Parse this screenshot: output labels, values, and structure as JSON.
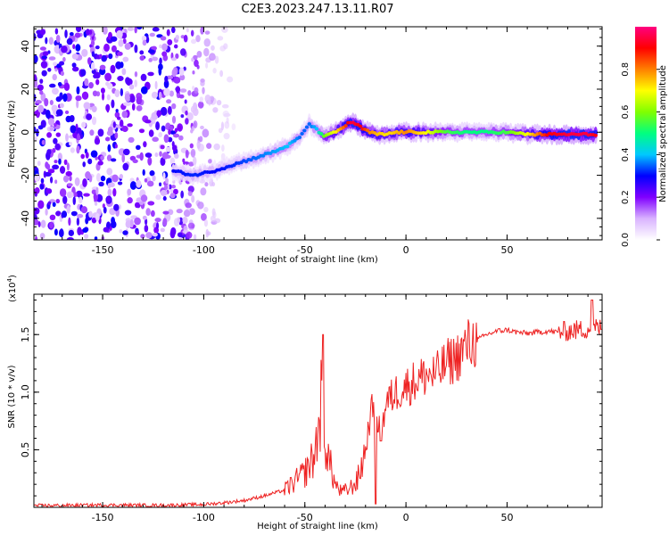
{
  "title": "C2E3.2023.247.13.11.R07",
  "colorbar": {
    "label": "Normalized spectral amplitude",
    "ticks": [
      "0.0",
      "0.2",
      "0.4",
      "0.6",
      "0.8"
    ],
    "tick_values": [
      0.0,
      0.2,
      0.4,
      0.6,
      0.8
    ],
    "range": [
      0,
      1
    ],
    "colors": [
      "#ffffff",
      "#d9b3ff",
      "#8000ff",
      "#0000ff",
      "#00c8ff",
      "#00ff80",
      "#80ff00",
      "#ffff00",
      "#ff8000",
      "#ff0000",
      "#ff0080"
    ]
  },
  "chart_data": [
    {
      "type": "heatmap",
      "title": "C2E3.2023.247.13.11.R07",
      "xlabel": "Height of straight line (km)",
      "ylabel": "Frequency (Hz)",
      "xlim": [
        -184,
        97
      ],
      "ylim": [
        -50,
        49
      ],
      "x_ticks": [
        -150,
        -100,
        -50,
        0,
        50
      ],
      "x_tick_labels": [
        "-150",
        "-100",
        "-50",
        "0",
        "50"
      ],
      "y_ticks": [
        -40,
        -20,
        0,
        20,
        40
      ],
      "y_tick_labels": [
        "-40",
        "-20",
        "0",
        "20",
        "40"
      ],
      "ridge": {
        "x": [
          -115,
          -105,
          -95,
          -85,
          -75,
          -65,
          -58,
          -52,
          -48,
          -44,
          -40,
          -35,
          -30,
          -27,
          -22,
          -18,
          -14,
          -10,
          -5,
          0,
          10,
          20,
          30,
          40,
          50,
          60,
          70,
          80,
          90,
          95
        ],
        "y": [
          -18,
          -20,
          -18,
          -15,
          -12,
          -9,
          -6,
          -2,
          4,
          1,
          -2,
          0,
          3,
          5,
          2,
          0,
          -1,
          -1,
          0,
          0,
          0,
          0,
          0,
          0,
          0,
          -1,
          -1,
          -1,
          -1,
          -1
        ],
        "amplitude": [
          0.3,
          0.32,
          0.3,
          0.32,
          0.35,
          0.38,
          0.4,
          0.35,
          0.35,
          0.4,
          0.6,
          0.7,
          0.85,
          0.95,
          0.9,
          0.8,
          0.75,
          0.72,
          0.75,
          0.8,
          0.7,
          0.55,
          0.5,
          0.5,
          0.55,
          0.7,
          0.9,
          0.95,
          0.95,
          0.9
        ]
      },
      "noise_region": {
        "x_range": [
          -184,
          -85
        ],
        "y_range": [
          -50,
          49
        ],
        "amplitude": [
          0.05,
          0.3
        ]
      }
    },
    {
      "type": "line",
      "title": "",
      "xlabel": "Height of straight line (km)",
      "ylabel": "SNR (10 * v/v)",
      "y_multiplier_label": "(x10",
      "y_multiplier_exp": "4",
      "xlim": [
        -184,
        97
      ],
      "ylim": [
        0,
        18500
      ],
      "x_ticks": [
        -150,
        -100,
        -50,
        0,
        50
      ],
      "x_tick_labels": [
        "-150",
        "-100",
        "-50",
        "0",
        "50"
      ],
      "y_ticks": [
        5000,
        10000,
        15000
      ],
      "y_tick_labels": [
        "0.5",
        "1.0",
        "1.5"
      ],
      "color": "#ee2222",
      "series": [
        {
          "name": "SNR",
          "x": [
            -184,
            -150,
            -120,
            -100,
            -90,
            -80,
            -70,
            -60,
            -55,
            -50,
            -45,
            -42,
            -40,
            -38,
            -35,
            -32,
            -28,
            -24,
            -20,
            -18,
            -16,
            -14,
            -12,
            -10,
            -5,
            0,
            5,
            10,
            15,
            20,
            25,
            30,
            35,
            40,
            45,
            50,
            55,
            60,
            65,
            70,
            75,
            80,
            85,
            90,
            95,
            97
          ],
          "y": [
            150,
            200,
            180,
            250,
            400,
            600,
            1000,
            1500,
            2200,
            3000,
            4500,
            9000,
            6000,
            4000,
            2000,
            1300,
            1600,
            2300,
            5000,
            7500,
            9000,
            7000,
            6500,
            9000,
            10000,
            10500,
            11000,
            11500,
            11500,
            12500,
            13000,
            14000,
            14500,
            15000,
            15300,
            15400,
            15200,
            15100,
            15200,
            15300,
            15200,
            15300,
            15400,
            15500,
            15600,
            15500
          ]
        }
      ]
    }
  ]
}
